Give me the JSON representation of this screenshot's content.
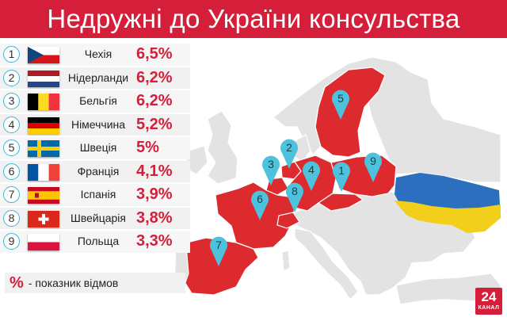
{
  "title": "Недружні до України консульства",
  "colors": {
    "accent": "#d51f3a",
    "marker": "#3fb6d3",
    "map_red": "#dd2a2f",
    "map_grey": "#e2e2e2"
  },
  "rows": [
    {
      "num": "1",
      "country": "Чехія",
      "value": "6,5%",
      "flag": "czech"
    },
    {
      "num": "2",
      "country": "Нідерланди",
      "value": "6,2%",
      "flag": "netherlands"
    },
    {
      "num": "3",
      "country": "Бельгія",
      "value": "6,2%",
      "flag": "belgium"
    },
    {
      "num": "4",
      "country": "Німеччина",
      "value": "5,2%",
      "flag": "germany"
    },
    {
      "num": "5",
      "country": "Швеція",
      "value": "5%",
      "flag": "sweden"
    },
    {
      "num": "6",
      "country": "Франція",
      "value": "4,1%",
      "flag": "france"
    },
    {
      "num": "7",
      "country": "Іспанія",
      "value": "3,9%",
      "flag": "spain"
    },
    {
      "num": "8",
      "country": "Швейцарія",
      "value": "3,8%",
      "flag": "switzerland"
    },
    {
      "num": "9",
      "country": "Польща",
      "value": "3,3%",
      "flag": "poland"
    }
  ],
  "legend": {
    "symbol": "%",
    "text": "- показник відмов"
  },
  "logo": {
    "number": "24",
    "label": "КАНАЛ"
  },
  "map_markers": [
    "1",
    "2",
    "3",
    "4",
    "5",
    "6",
    "7",
    "8",
    "9"
  ]
}
